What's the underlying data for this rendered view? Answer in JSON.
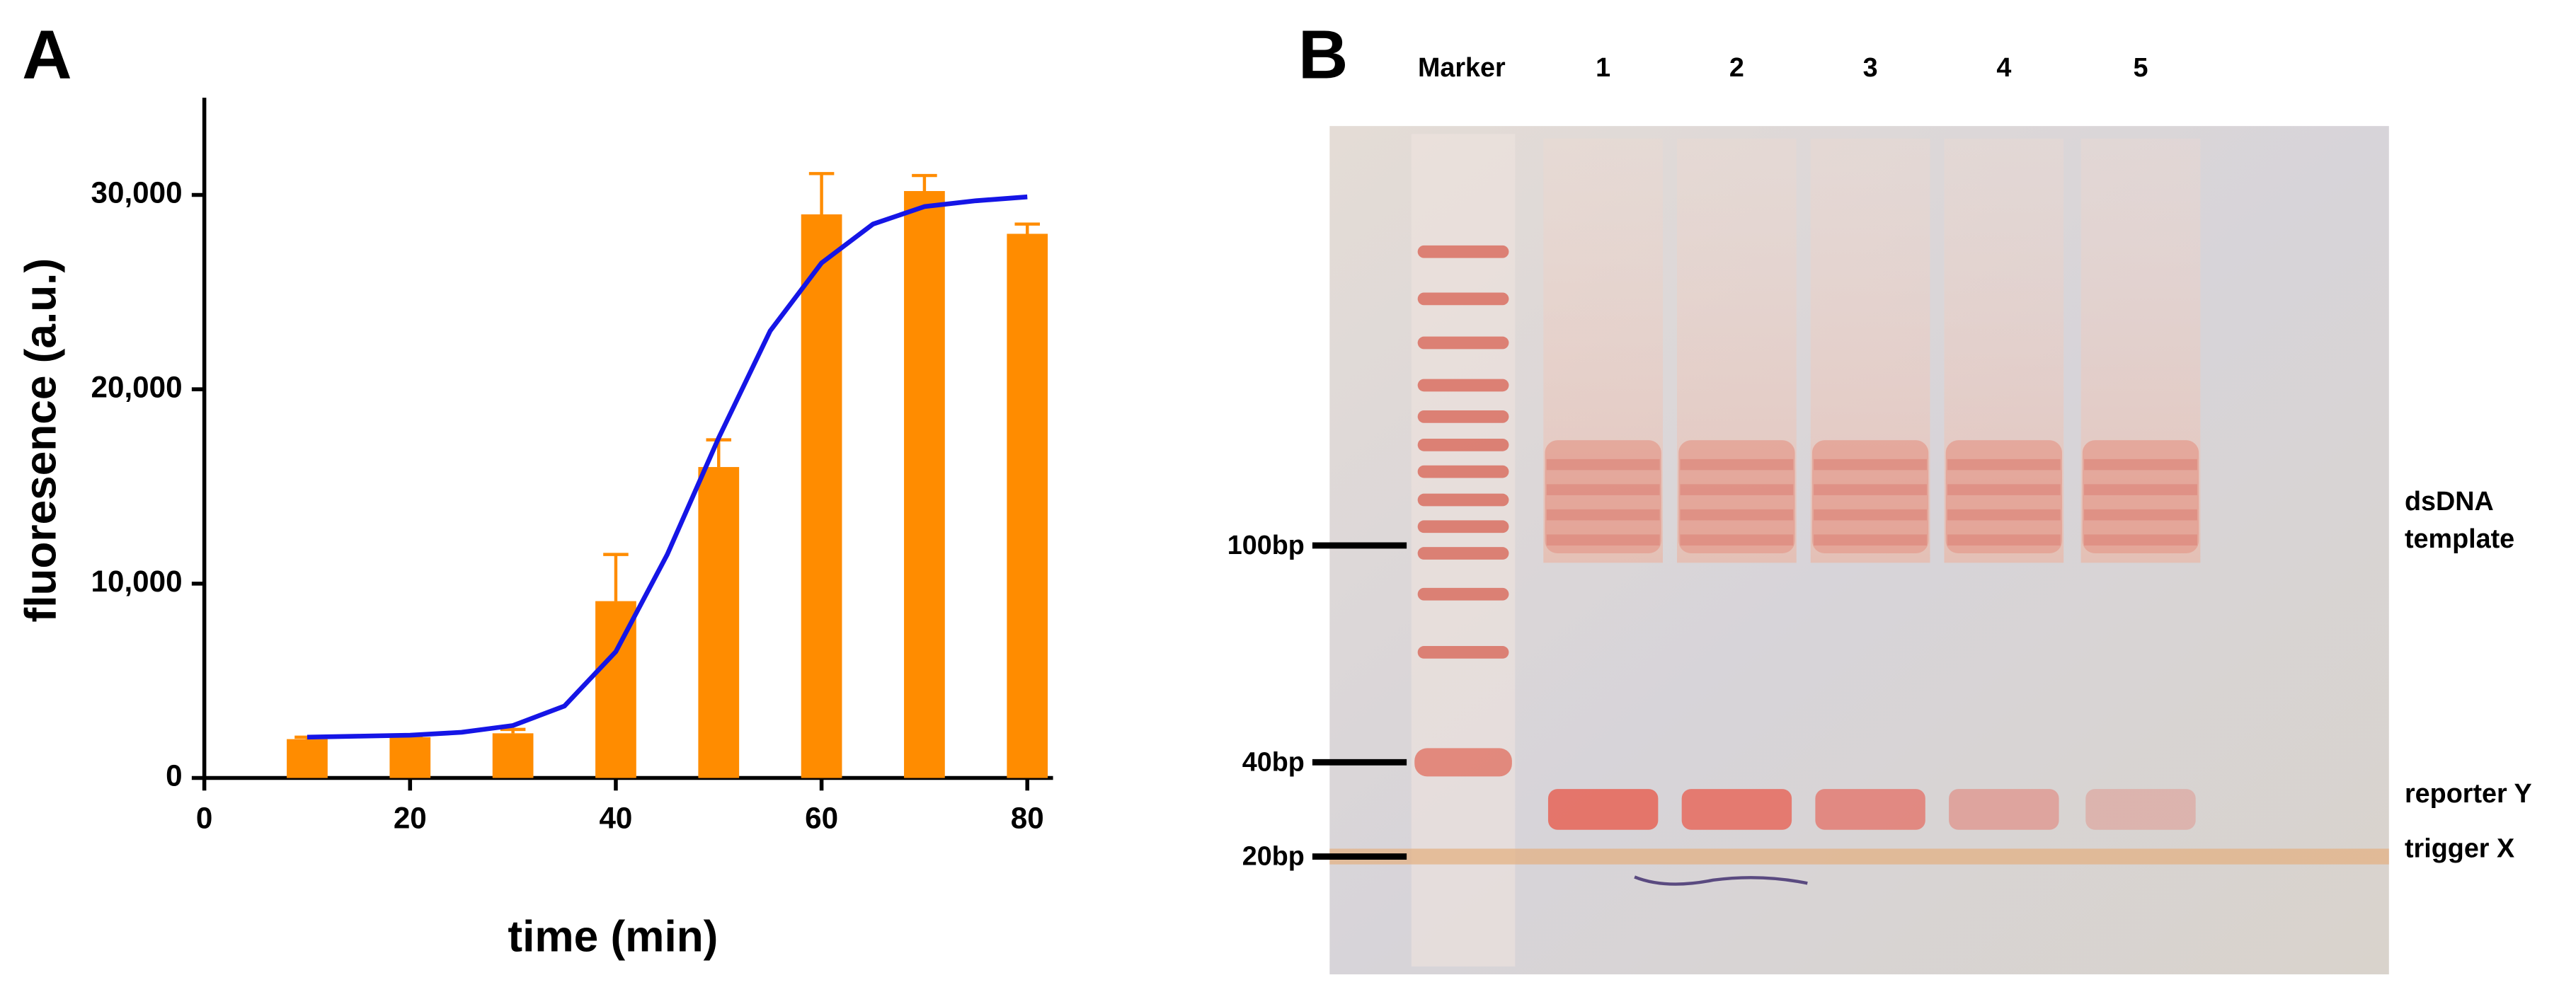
{
  "chart_data": {
    "type": "bar",
    "panel_label": "A",
    "xlabel": "time (min)",
    "ylabel": "fluoresence (a.u.)",
    "x": [
      10,
      20,
      30,
      40,
      50,
      60,
      70,
      80
    ],
    "series": [
      {
        "type": "bar",
        "color": "#ff8c00",
        "values": [
          2000,
          2100,
          2300,
          9100,
          16000,
          29000,
          30200,
          28000
        ],
        "errors": [
          100,
          50,
          200,
          2400,
          1400,
          2100,
          800,
          500
        ]
      },
      {
        "type": "line",
        "color": "#1515e6",
        "x": [
          10,
          15,
          20,
          25,
          30,
          35,
          40,
          45,
          50,
          55,
          60,
          65,
          70,
          75,
          80
        ],
        "values": [
          2100,
          2150,
          2200,
          2350,
          2700,
          3700,
          6500,
          11500,
          17500,
          23000,
          26500,
          28500,
          29400,
          29700,
          29900
        ]
      }
    ],
    "xlim": [
      0,
      82.5
    ],
    "xticks": [
      0,
      20,
      40,
      60,
      80
    ],
    "ylim": [
      0,
      35000
    ],
    "yticks": [
      0,
      {
        "value": 10000,
        "label": "10,000"
      },
      {
        "value": 20000,
        "label": "20,000"
      },
      {
        "value": 30000,
        "label": "30,000"
      }
    ],
    "grid": false
  },
  "gel": {
    "panel_label": "B",
    "marker_label": "Marker",
    "lanes": [
      "1",
      "2",
      "3",
      "4",
      "5"
    ],
    "size_markers": [
      "100bp",
      "40bp",
      "20bp"
    ],
    "annotations": {
      "dsdna": [
        "dsDNA",
        "template"
      ],
      "reporter": "reporter Y",
      "trigger": "trigger X"
    }
  }
}
